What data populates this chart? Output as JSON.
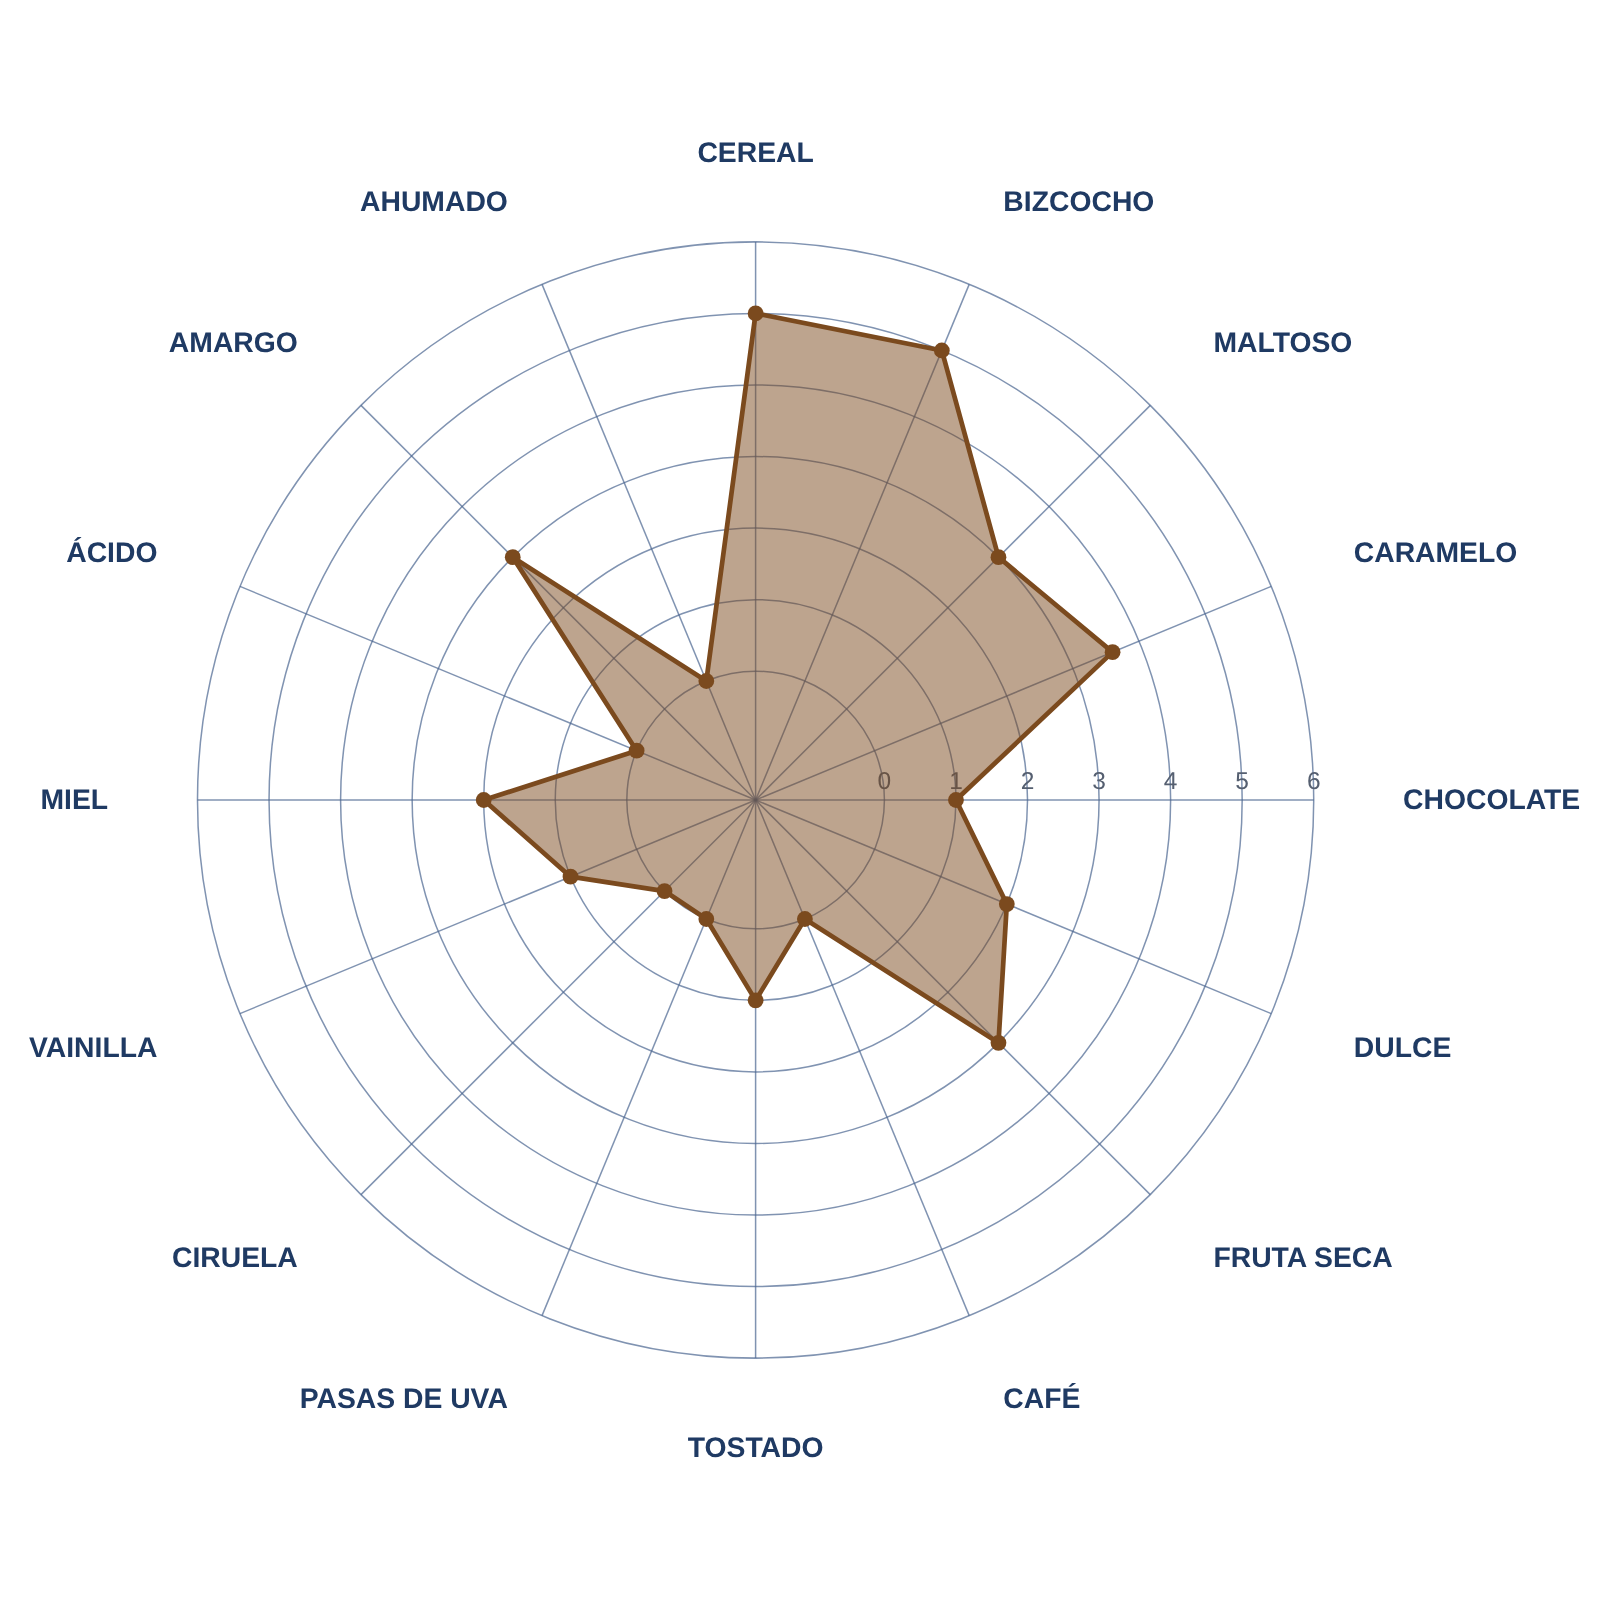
{
  "chart_data": {
    "type": "radar",
    "categories": [
      "CEREAL",
      "BIZCOCHO",
      "MALTOSO",
      "CARAMELO",
      "CHOCOLATE",
      "DULCE",
      "FRUTA SECA",
      "CAFÉ",
      "TOSTADO",
      "PASAS DE UVA",
      "CIRUELA",
      "VAINILLA",
      "MIEL",
      "ÁCIDO",
      "AMARGO",
      "AHUMADO"
    ],
    "series": [
      {
        "color": "#7b4a1e",
        "values": [
          5,
          5,
          3,
          3.6,
          1,
          2,
          3,
          0,
          1,
          0,
          0,
          1,
          2,
          0,
          3,
          0
        ]
      }
    ],
    "ylim": [
      -1.8,
      6
    ],
    "yticks": [
      0,
      1,
      2,
      3,
      4,
      5,
      6
    ],
    "grid": true,
    "marker": "circle"
  }
}
